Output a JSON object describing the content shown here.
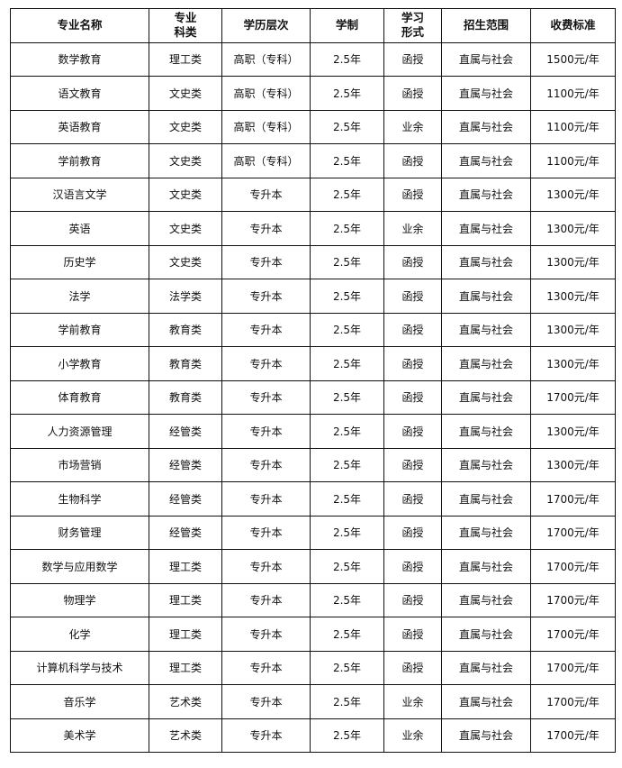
{
  "headers": [
    [
      "专业名称"
    ],
    [
      "专业",
      "科类"
    ],
    [
      "学历层次"
    ],
    [
      "学制"
    ],
    [
      "学习",
      "形式"
    ],
    [
      "招生范围"
    ],
    [
      "收费标准"
    ]
  ],
  "rows": [
    [
      "数学教育",
      "理工类",
      "高职（专科）",
      "2.5年",
      "函授",
      "直属与社会",
      "1500元/年"
    ],
    [
      "语文教育",
      "文史类",
      "高职（专科）",
      "2.5年",
      "函授",
      "直属与社会",
      "1100元/年"
    ],
    [
      "英语教育",
      "文史类",
      "高职（专科）",
      "2.5年",
      "业余",
      "直属与社会",
      "1100元/年"
    ],
    [
      "学前教育",
      "文史类",
      "高职（专科）",
      "2.5年",
      "函授",
      "直属与社会",
      "1100元/年"
    ],
    [
      "汉语言文学",
      "文史类",
      "专升本",
      "2.5年",
      "函授",
      "直属与社会",
      "1300元/年"
    ],
    [
      "英语",
      "文史类",
      "专升本",
      "2.5年",
      "业余",
      "直属与社会",
      "1300元/年"
    ],
    [
      "历史学",
      "文史类",
      "专升本",
      "2.5年",
      "函授",
      "直属与社会",
      "1300元/年"
    ],
    [
      "法学",
      "法学类",
      "专升本",
      "2.5年",
      "函授",
      "直属与社会",
      "1300元/年"
    ],
    [
      "学前教育",
      "教育类",
      "专升本",
      "2.5年",
      "函授",
      "直属与社会",
      "1300元/年"
    ],
    [
      "小学教育",
      "教育类",
      "专升本",
      "2.5年",
      "函授",
      "直属与社会",
      "1300元/年"
    ],
    [
      "体育教育",
      "教育类",
      "专升本",
      "2.5年",
      "函授",
      "直属与社会",
      "1700元/年"
    ],
    [
      "人力资源管理",
      "经管类",
      "专升本",
      "2.5年",
      "函授",
      "直属与社会",
      "1300元/年"
    ],
    [
      "市场营销",
      "经管类",
      "专升本",
      "2.5年",
      "函授",
      "直属与社会",
      "1300元/年"
    ],
    [
      "生物科学",
      "经管类",
      "专升本",
      "2.5年",
      "函授",
      "直属与社会",
      "1700元/年"
    ],
    [
      "财务管理",
      "经管类",
      "专升本",
      "2.5年",
      "函授",
      "直属与社会",
      "1700元/年"
    ],
    [
      "数学与应用数学",
      "理工类",
      "专升本",
      "2.5年",
      "函授",
      "直属与社会",
      "1700元/年"
    ],
    [
      "物理学",
      "理工类",
      "专升本",
      "2.5年",
      "函授",
      "直属与社会",
      "1700元/年"
    ],
    [
      "化学",
      "理工类",
      "专升本",
      "2.5年",
      "函授",
      "直属与社会",
      "1700元/年"
    ],
    [
      "计算机科学与技术",
      "理工类",
      "专升本",
      "2.5年",
      "函授",
      "直属与社会",
      "1700元/年"
    ],
    [
      "音乐学",
      "艺术类",
      "专升本",
      "2.5年",
      "业余",
      "直属与社会",
      "1700元/年"
    ],
    [
      "美术学",
      "艺术类",
      "专升本",
      "2.5年",
      "业余",
      "直属与社会",
      "1700元/年"
    ]
  ]
}
